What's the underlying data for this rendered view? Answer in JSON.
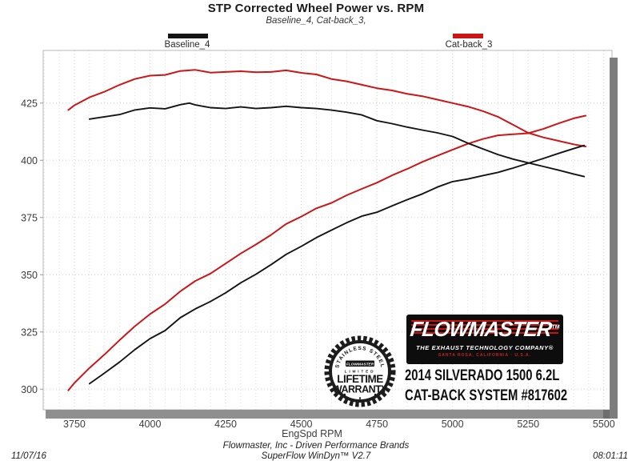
{
  "header": {
    "title": "STP Corrected Wheel Power vs. RPM",
    "subtitle": "Baseline_4, Cat-back_3,"
  },
  "chart_data": {
    "type": "line",
    "title": "STP Corrected Wheel Power vs. RPM",
    "subtitle": "Baseline_4, Cat-back_3,",
    "xlabel": "EngSpd RPM",
    "ylabel": "",
    "xlim": [
      3647,
      5527
    ],
    "ylim": [
      291,
      448
    ],
    "xticks": [
      3750,
      4000,
      4250,
      4500,
      4750,
      5000,
      5250,
      5500
    ],
    "yticks": [
      300,
      325,
      350,
      375,
      400,
      425
    ],
    "x_minor_step": 50,
    "grid": "dotted",
    "legend_position": "top",
    "legend": [
      {
        "label": "Baseline_4",
        "color": "#141414"
      },
      {
        "label": "Cat-back_3",
        "color": "#cc1616"
      }
    ],
    "series": [
      {
        "name": "Cat-back_3 upper (falling) trace",
        "run": "Cat-back_3",
        "color": "#cc1616",
        "width": 2,
        "points": [
          [
            3730,
            422
          ],
          [
            3750,
            424
          ],
          [
            3800,
            427.5
          ],
          [
            3850,
            430
          ],
          [
            3900,
            433
          ],
          [
            3950,
            435.5
          ],
          [
            4000,
            437
          ],
          [
            4050,
            437.3
          ],
          [
            4100,
            439
          ],
          [
            4150,
            439.5
          ],
          [
            4200,
            438.3
          ],
          [
            4250,
            438.6
          ],
          [
            4300,
            438.9
          ],
          [
            4350,
            438.5
          ],
          [
            4400,
            438.6
          ],
          [
            4450,
            439.3
          ],
          [
            4500,
            438.2
          ],
          [
            4550,
            437.5
          ],
          [
            4600,
            435.5
          ],
          [
            4650,
            434.5
          ],
          [
            4700,
            433
          ],
          [
            4750,
            431.5
          ],
          [
            4800,
            430.5
          ],
          [
            4850,
            429
          ],
          [
            4900,
            428
          ],
          [
            4950,
            426.5
          ],
          [
            5000,
            425
          ],
          [
            5050,
            423.5
          ],
          [
            5100,
            421.5
          ],
          [
            5150,
            419
          ],
          [
            5200,
            415.5
          ],
          [
            5250,
            412
          ],
          [
            5300,
            410
          ],
          [
            5350,
            408.5
          ],
          [
            5400,
            407
          ],
          [
            5440,
            406
          ]
        ]
      },
      {
        "name": "Cat-back_3 power (rising) trace",
        "run": "Cat-back_3",
        "color": "#cc1616",
        "width": 2,
        "points": [
          [
            3730,
            299.5
          ],
          [
            3750,
            302.7
          ],
          [
            3800,
            309.3
          ],
          [
            3850,
            315.2
          ],
          [
            3900,
            321.5
          ],
          [
            3950,
            327.5
          ],
          [
            4000,
            332.8
          ],
          [
            4050,
            337.2
          ],
          [
            4100,
            342.7
          ],
          [
            4150,
            347.3
          ],
          [
            4200,
            350.5
          ],
          [
            4250,
            354.9
          ],
          [
            4300,
            359.3
          ],
          [
            4350,
            363.2
          ],
          [
            4400,
            367.4
          ],
          [
            4450,
            372.2
          ],
          [
            4500,
            375.4
          ],
          [
            4550,
            379
          ],
          [
            4600,
            381.4
          ],
          [
            4650,
            384.7
          ],
          [
            4700,
            387.5
          ],
          [
            4750,
            390.2
          ],
          [
            4800,
            393.4
          ],
          [
            4850,
            396.2
          ],
          [
            4900,
            399.3
          ],
          [
            4950,
            402
          ],
          [
            5000,
            404.6
          ],
          [
            5050,
            407.2
          ],
          [
            5100,
            409.3
          ],
          [
            5150,
            410.9
          ],
          [
            5200,
            411.4
          ],
          [
            5250,
            411.8
          ],
          [
            5300,
            413.7
          ],
          [
            5350,
            416.1
          ],
          [
            5400,
            418.3
          ],
          [
            5440,
            419.5
          ]
        ]
      },
      {
        "name": "Baseline_4 upper (falling) trace",
        "run": "Baseline_4",
        "color": "#141414",
        "width": 1.9,
        "points": [
          [
            3800,
            418
          ],
          [
            3850,
            419
          ],
          [
            3900,
            420
          ],
          [
            3950,
            422
          ],
          [
            4000,
            422.9
          ],
          [
            4050,
            422.5
          ],
          [
            4100,
            424.3
          ],
          [
            4130,
            425
          ],
          [
            4150,
            424.2
          ],
          [
            4200,
            423
          ],
          [
            4250,
            422.6
          ],
          [
            4300,
            423.3
          ],
          [
            4350,
            422.6
          ],
          [
            4400,
            423
          ],
          [
            4450,
            423.6
          ],
          [
            4500,
            423
          ],
          [
            4550,
            422.6
          ],
          [
            4600,
            421.9
          ],
          [
            4650,
            421
          ],
          [
            4700,
            419.8
          ],
          [
            4750,
            417.3
          ],
          [
            4800,
            416
          ],
          [
            4850,
            414.5
          ],
          [
            4900,
            413.2
          ],
          [
            4950,
            412
          ],
          [
            5000,
            410.4
          ],
          [
            5050,
            407.5
          ],
          [
            5100,
            405
          ],
          [
            5150,
            402.5
          ],
          [
            5200,
            400.5
          ],
          [
            5250,
            398.9
          ],
          [
            5300,
            397.3
          ],
          [
            5350,
            395.7
          ],
          [
            5400,
            394
          ],
          [
            5435,
            392.9
          ]
        ]
      },
      {
        "name": "Baseline_4 power (rising) trace",
        "run": "Baseline_4",
        "color": "#141414",
        "width": 1.9,
        "points": [
          [
            3800,
            302.4
          ],
          [
            3850,
            307.1
          ],
          [
            3900,
            311.9
          ],
          [
            3950,
            317.3
          ],
          [
            4000,
            322.1
          ],
          [
            4050,
            325.6
          ],
          [
            4100,
            331.2
          ],
          [
            4150,
            335.1
          ],
          [
            4200,
            338.3
          ],
          [
            4250,
            342.1
          ],
          [
            4300,
            346.5
          ],
          [
            4350,
            350.2
          ],
          [
            4400,
            354.4
          ],
          [
            4450,
            358.9
          ],
          [
            4500,
            362.4
          ],
          [
            4550,
            366.2
          ],
          [
            4600,
            369.5
          ],
          [
            4650,
            372.7
          ],
          [
            4700,
            375.6
          ],
          [
            4750,
            377.3
          ],
          [
            4800,
            380.1
          ],
          [
            4850,
            382.8
          ],
          [
            4900,
            385.3
          ],
          [
            4950,
            388.3
          ],
          [
            5000,
            390.7
          ],
          [
            5050,
            391.8
          ],
          [
            5100,
            393.3
          ],
          [
            5150,
            394.7
          ],
          [
            5200,
            396.6
          ],
          [
            5250,
            398.7
          ],
          [
            5300,
            400.8
          ],
          [
            5350,
            403
          ],
          [
            5400,
            405.1
          ],
          [
            5435,
            406.5
          ]
        ]
      }
    ]
  },
  "branding": {
    "badge": {
      "arc_text": "STAINLESS STEEL",
      "brand": "FLOWMASTER",
      "limited": "LIMITED",
      "lifetime": "LIFETIME",
      "warranty": "WARRANTY"
    },
    "logo": {
      "name": "FLOWMASTER",
      "tm": "TM",
      "tagline": "THE EXHAUST TECHNOLOGY COMPANY®",
      "address": "SANTA ROSA, CALIFORNIA · U.S.A."
    },
    "vehicle_line1": "2014 SILVERADO 1500 6.2L",
    "vehicle_line2": "CAT-BACK SYSTEM #817602"
  },
  "footer": {
    "date": "11/07/16",
    "time": "08:01:11",
    "company": "Flowmaster, Inc - Driven Performance Brands",
    "software": "SuperFlow WinDyn™ V2.7"
  }
}
